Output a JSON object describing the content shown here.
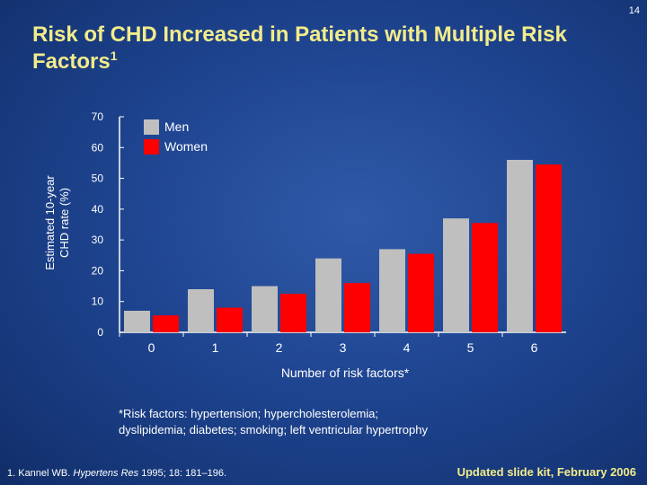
{
  "slide_number": "14",
  "title_main": "Risk of CHD Increased in Patients with Multiple Risk Factors",
  "title_sup": "1",
  "footnote_line1": "*Risk factors: hypertension; hypercholesterolemia;",
  "footnote_line2": "dyslipidemia; diabetes; smoking; left ventricular hypertrophy",
  "reference": {
    "prefix": "1. Kannel WB. ",
    "journal": "Hypertens Res",
    "suffix": " 1995; 18: 181–196."
  },
  "update_note": "Updated slide kit, February 2006",
  "colors": {
    "men": "#bfbfbf",
    "women": "#ff0000",
    "axis": "#ffffff",
    "title": "#f2ec8a"
  },
  "chart_data": {
    "type": "bar",
    "categories": [
      "0",
      "1",
      "2",
      "3",
      "4",
      "5",
      "6"
    ],
    "series": [
      {
        "name": "Men",
        "values": [
          7,
          14,
          15,
          24,
          27,
          37,
          56
        ]
      },
      {
        "name": "Women",
        "values": [
          5.5,
          8,
          12.5,
          16,
          25.5,
          35.5,
          54.5
        ]
      }
    ],
    "xlabel": "Number of risk factors*",
    "ylabel_line1": "Estimated 10-year",
    "ylabel_line2": "CHD rate (%)",
    "ylim": [
      0,
      70
    ],
    "yticks": [
      0,
      10,
      20,
      30,
      40,
      50,
      60,
      70
    ],
    "grid": false,
    "legend_position": "top-left"
  }
}
